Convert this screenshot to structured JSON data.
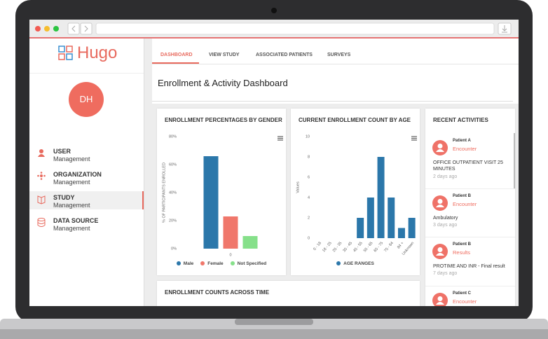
{
  "logo": "Hugo",
  "user": {
    "initials": "DH"
  },
  "menu": [
    {
      "title": "USER",
      "subtitle": "Management"
    },
    {
      "title": "ORGANIZATION",
      "subtitle": "Management"
    },
    {
      "title": "STUDY",
      "subtitle": "Management"
    },
    {
      "title": "DATA SOURCE",
      "subtitle": "Management"
    }
  ],
  "tabs": [
    "DASHBOARD",
    "VIEW STUDY",
    "ASSOCIATED PATIENTS",
    "SURVEYS"
  ],
  "page_title": "Enrollment & Activity Dashboard",
  "chart_data": [
    {
      "type": "bar",
      "title": "ENROLLMENT PERCENTAGES BY GENDER",
      "ylabel": "% OF PARTICIPANTS ENROLLED",
      "categories": [
        "0"
      ],
      "series": [
        {
          "name": "Male",
          "color": "#2b77aa",
          "values": [
            66
          ]
        },
        {
          "name": "Female",
          "color": "#f0776b",
          "values": [
            23
          ]
        },
        {
          "name": "Not Specified",
          "color": "#86e08a",
          "values": [
            9
          ]
        }
      ],
      "ylim": [
        0,
        80
      ],
      "yticks": [
        {
          "value": 0,
          "label": "0%"
        },
        {
          "value": 20,
          "label": "20%"
        },
        {
          "value": 40,
          "label": "40%"
        },
        {
          "value": 60,
          "label": "60%"
        },
        {
          "value": 80,
          "label": "80%"
        }
      ],
      "grid": false,
      "legend": "bottom"
    },
    {
      "type": "bar",
      "title": "CURRENT ENROLLMENT COUNT BY AGE",
      "ylabel": "Values",
      "categories": [
        "0 - 18",
        "18 - 25",
        "25 - 35",
        "35 - 45",
        "45 - 55",
        "55 - 65",
        "65 - 75",
        "75 - 84",
        "84 +",
        "Unknown"
      ],
      "series": [
        {
          "name": "AGE RANGES",
          "color": "#2b77aa",
          "values": [
            0,
            0,
            0,
            0,
            2,
            4,
            8,
            4,
            1,
            2
          ]
        }
      ],
      "ylim": [
        0,
        10
      ],
      "yticks": [
        0,
        2,
        4,
        6,
        8,
        10
      ],
      "grid": false,
      "legend": "bottom"
    }
  ],
  "activities": {
    "title": "RECENT ACTIVITIES",
    "items": [
      {
        "patient": "Patient A",
        "type": "Encounter",
        "description": "OFFICE OUTPATIENT VISIT 25 MINUTES",
        "time": "2 days ago"
      },
      {
        "patient": "Patient B",
        "type": "Encounter",
        "description": "Ambulatory",
        "time": "3 days ago"
      },
      {
        "patient": "Patient B",
        "type": "Results",
        "description": "PROTIME AND INR - Final result",
        "time": "7 days ago"
      },
      {
        "patient": "Patient C",
        "type": "Encounter"
      }
    ]
  },
  "timeline_card": {
    "title": "ENROLLMENT COUNTS ACROSS TIME"
  }
}
